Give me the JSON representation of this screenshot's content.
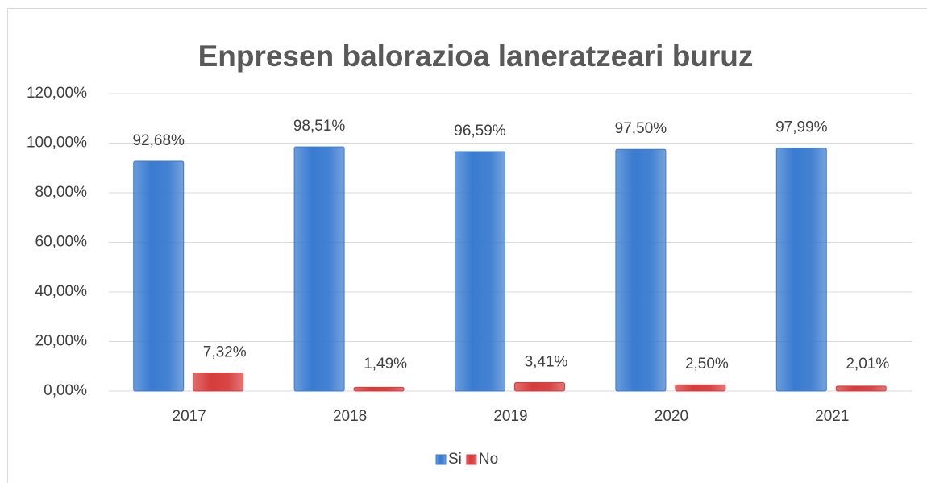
{
  "chart_data": {
    "type": "bar",
    "title": "Enpresen balorazioa laneratzeari buruz",
    "categories": [
      "2017",
      "2018",
      "2019",
      "2020",
      "2021"
    ],
    "series": [
      {
        "name": "Si",
        "color": "#3a7bd0",
        "values": [
          92.68,
          98.51,
          96.59,
          97.5,
          97.99
        ],
        "value_labels": [
          "92,68%",
          "98,51%",
          "96,59%",
          "97,50%",
          "97,99%"
        ]
      },
      {
        "name": "No",
        "color": "#d63c3c",
        "values": [
          7.32,
          1.49,
          3.41,
          2.5,
          2.01
        ],
        "value_labels": [
          "7,32%",
          "1,49%",
          "3,41%",
          "2,50%",
          "2,01%"
        ]
      }
    ],
    "ylim": [
      0,
      120
    ],
    "yticks": [
      {
        "value": 0,
        "label": "0,00%"
      },
      {
        "value": 20,
        "label": "20,00%"
      },
      {
        "value": 40,
        "label": "40,00%"
      },
      {
        "value": 60,
        "label": "60,00%"
      },
      {
        "value": 80,
        "label": "80,00%"
      },
      {
        "value": 100,
        "label": "100,00%"
      },
      {
        "value": 120,
        "label": "120,00%"
      }
    ],
    "grid": true,
    "legend": "bottom"
  }
}
